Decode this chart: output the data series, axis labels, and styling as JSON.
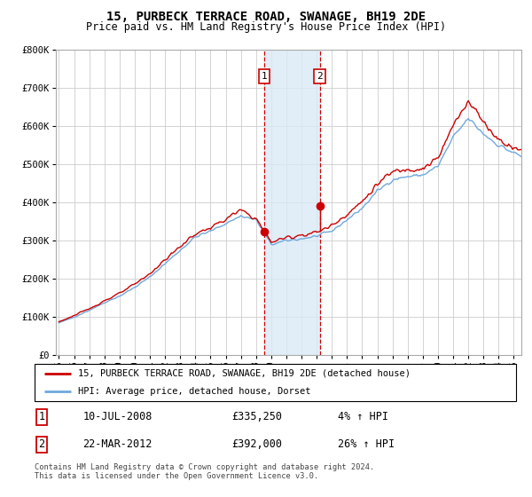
{
  "title": "15, PURBECK TERRACE ROAD, SWANAGE, BH19 2DE",
  "subtitle": "Price paid vs. HM Land Registry's House Price Index (HPI)",
  "legend_line1": "15, PURBECK TERRACE ROAD, SWANAGE, BH19 2DE (detached house)",
  "legend_line2": "HPI: Average price, detached house, Dorset",
  "footnote": "Contains HM Land Registry data © Crown copyright and database right 2024.\nThis data is licensed under the Open Government Licence v3.0.",
  "sale1_label": "1",
  "sale1_date": "10-JUL-2008",
  "sale1_price": "£335,250",
  "sale1_hpi": "4% ↑ HPI",
  "sale2_label": "2",
  "sale2_date": "22-MAR-2012",
  "sale2_price": "£392,000",
  "sale2_hpi": "26% ↑ HPI",
  "sale1_year": 2008.542,
  "sale2_year": 2012.22,
  "sale1_value": 335250,
  "sale2_value": 392000,
  "hpi_color": "#6fa8dc",
  "price_color": "#cc0000",
  "highlight_color": "#daeaf7",
  "ylim_min": 0,
  "ylim_max": 800000,
  "xlim_min": 1994.8,
  "xlim_max": 2025.5,
  "background_color": "#ffffff",
  "grid_color": "#cccccc"
}
